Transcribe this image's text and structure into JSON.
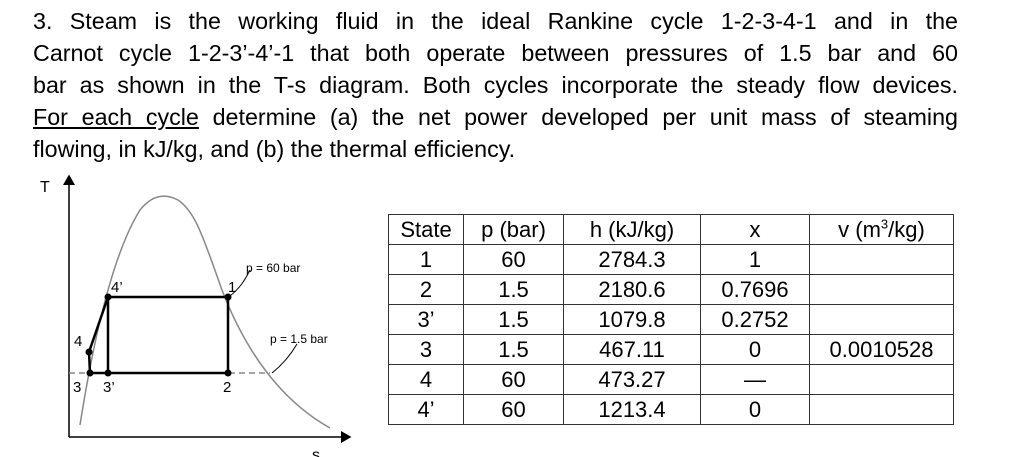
{
  "problem": {
    "lines": [
      "3. Steam is the working fluid in the ideal Rankine cycle 1-2-3-4-1 and in the",
      "Carnot cycle 1-2-3’-4’-1 that both operate between pressures of 1.5 bar and 60",
      "bar as shown in the T-s diagram. Both cycles incorporate the steady flow devices."
    ],
    "line4_underlined": "For each cycle",
    "line4_rest": " determine (a) the net power developed per unit mass of steaming",
    "line5": "flowing, in kJ/kg, and (b) the thermal efficiency."
  },
  "diagram": {
    "y_axis_label": "T",
    "x_axis_label": "s",
    "high_pressure_label": "p = 60 bar",
    "low_pressure_label": "p = 1.5 bar",
    "points": {
      "p1": "1",
      "p2": "2",
      "p3": "3",
      "p3p": "3’",
      "p4": "4",
      "p4p": "4’"
    }
  },
  "table": {
    "headers": [
      "State",
      "p (bar)",
      "h (kJ/kg)",
      "x",
      "v (m",
      "3",
      "/kg)"
    ],
    "rows": [
      [
        "1",
        "60",
        "2784.3",
        "1",
        ""
      ],
      [
        "2",
        "1.5",
        "2180.6",
        "0.7696",
        ""
      ],
      [
        "3’",
        "1.5",
        "1079.8",
        "0.2752",
        ""
      ],
      [
        "3",
        "1.5",
        "467.11",
        "0",
        "0.0010528"
      ],
      [
        "4",
        "60",
        "473.27",
        "—",
        ""
      ],
      [
        "4’",
        "60",
        "1213.4",
        "0",
        ""
      ]
    ]
  }
}
